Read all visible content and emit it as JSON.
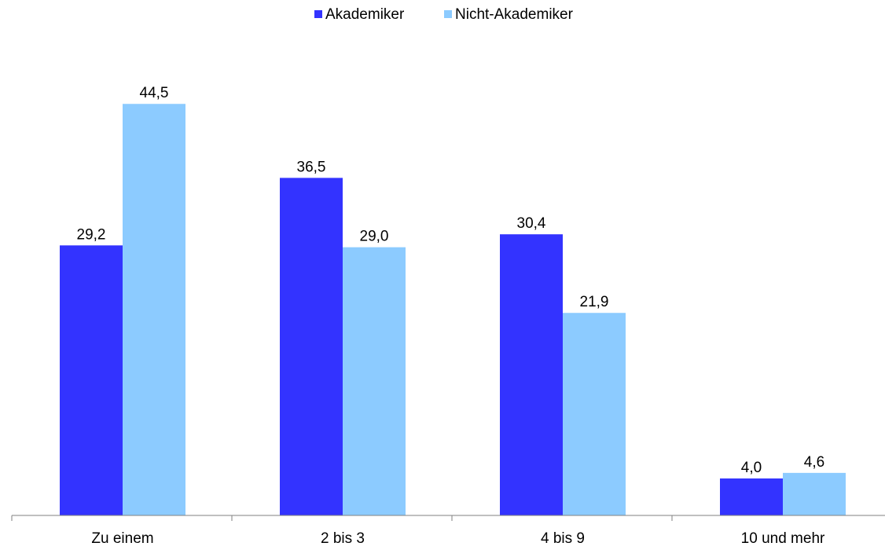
{
  "chart_data": {
    "type": "bar",
    "categories": [
      "Zu einem",
      "2 bis 3",
      "4 bis 9",
      "10 und mehr"
    ],
    "series": [
      {
        "name": "Akademiker",
        "color": "#3333ff",
        "values": [
          29.2,
          36.5,
          30.4,
          4.0
        ],
        "labels": [
          "29,2",
          "36,5",
          "30,4",
          "4,0"
        ]
      },
      {
        "name": "Nicht-Akademiker",
        "color": "#8ccbff",
        "values": [
          44.5,
          29.0,
          21.9,
          4.6
        ],
        "labels": [
          "44,5",
          "29,0",
          "21,9",
          "4,6"
        ]
      }
    ],
    "legend_position": "top-center",
    "axis_color": "#808080",
    "grid": false,
    "ylim": [
      0,
      47
    ],
    "y_axis_visible": false,
    "title": "",
    "xlabel": "",
    "ylabel": ""
  }
}
